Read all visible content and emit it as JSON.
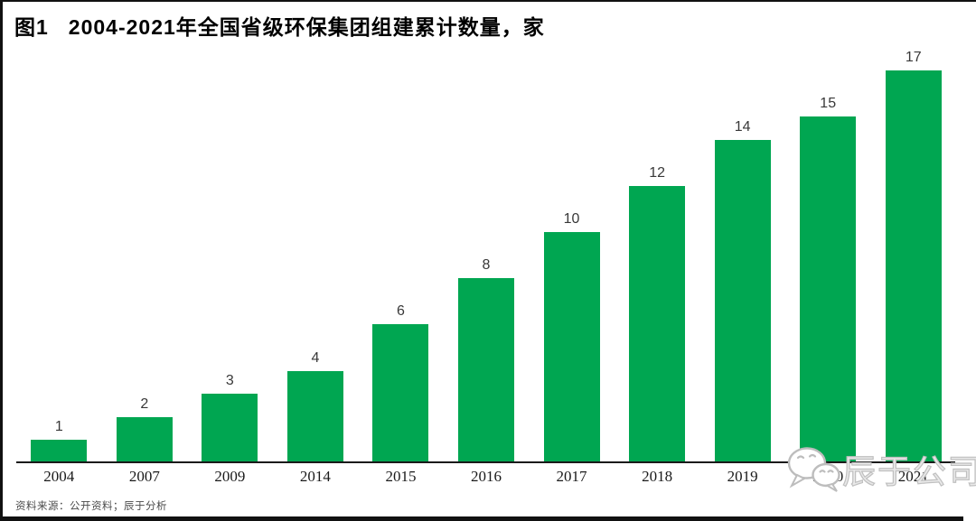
{
  "header": {
    "figure_label": "图1",
    "title": "2004-2021年全国省级环保集团组建累计数量，家"
  },
  "chart_data": {
    "type": "bar",
    "title": "图1 2004-2021年全国省级环保集团组建累计数量，家",
    "categories": [
      "2004",
      "2007",
      "2009",
      "2014",
      "2015",
      "2016",
      "2017",
      "2018",
      "2019",
      "2020",
      "2021"
    ],
    "values": [
      1,
      2,
      3,
      4,
      6,
      8,
      10,
      12,
      14,
      15,
      17
    ],
    "xlabel": "",
    "ylabel": "",
    "ylim": [
      0,
      17
    ],
    "bar_color": "#00A651",
    "data_labels": true,
    "grid": false,
    "legend": false,
    "note": "2020 tick label hidden behind watermark; 2021 partially hidden"
  },
  "footer": {
    "source_text": "资料来源：公开资料；辰于分析"
  },
  "watermark": {
    "icon": "wechat-icon",
    "text": "辰于公司"
  }
}
